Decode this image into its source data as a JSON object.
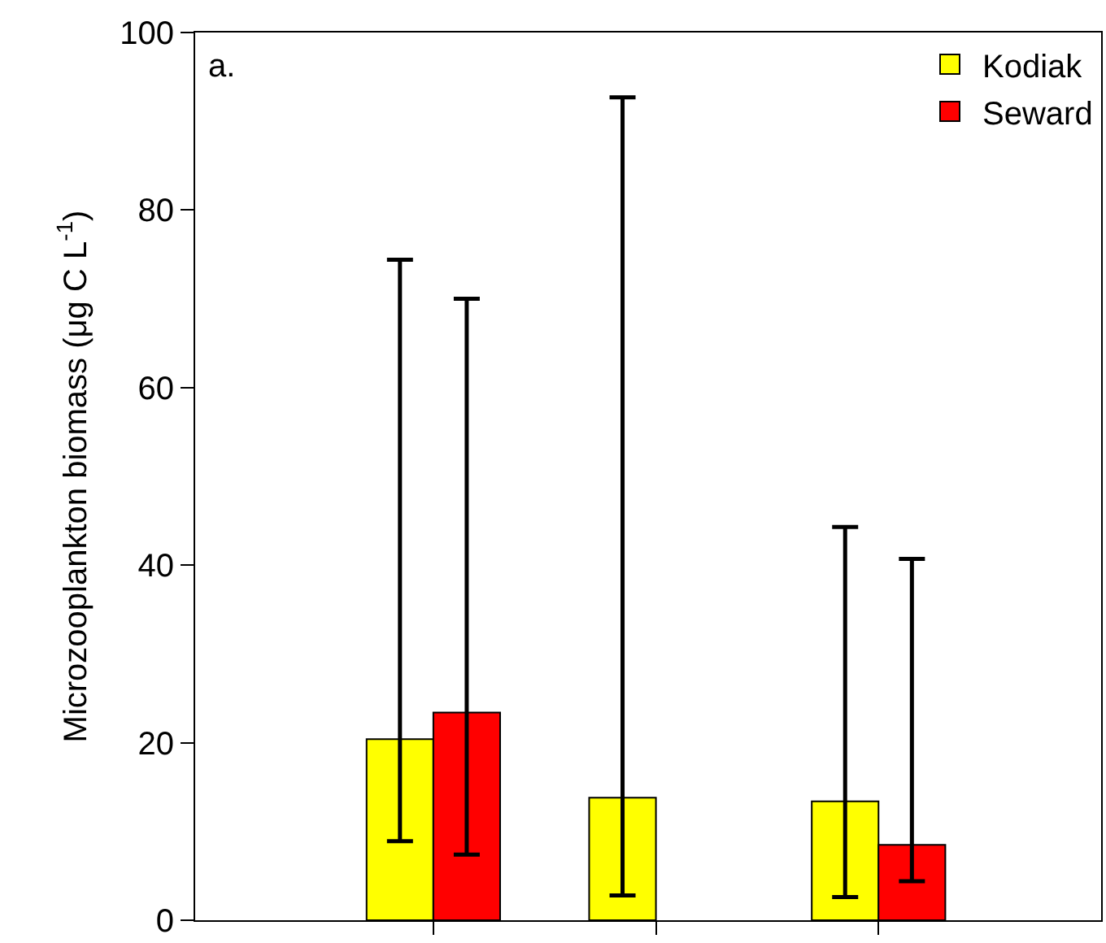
{
  "chart_data": {
    "type": "bar",
    "categories": [
      null,
      null,
      null
    ],
    "ylabel": "Microzooplankton biomass (μg C L$^{-1}$)",
    "series": [
      {
        "name": "Kodiak",
        "color": "#ffff00",
        "values": [
          20.4,
          13.8,
          13.4
        ],
        "errors": [
          [
            8.9,
            74.4
          ],
          [
            2.8,
            92.7
          ],
          [
            2.6,
            44.3
          ]
        ]
      },
      {
        "name": "Seward",
        "color": "#ff0000",
        "values": [
          23.4,
          null,
          8.5
        ],
        "errors": [
          [
            7.4,
            70.0
          ],
          null,
          [
            4.4,
            40.7
          ]
        ]
      }
    ],
    "ylim": [
      0,
      100
    ],
    "yticks": [
      0,
      20,
      40,
      60,
      80,
      100
    ],
    "grid": false,
    "legend": "top right",
    "tick_labels": "y",
    "annotations": [
      "a."
    ]
  }
}
